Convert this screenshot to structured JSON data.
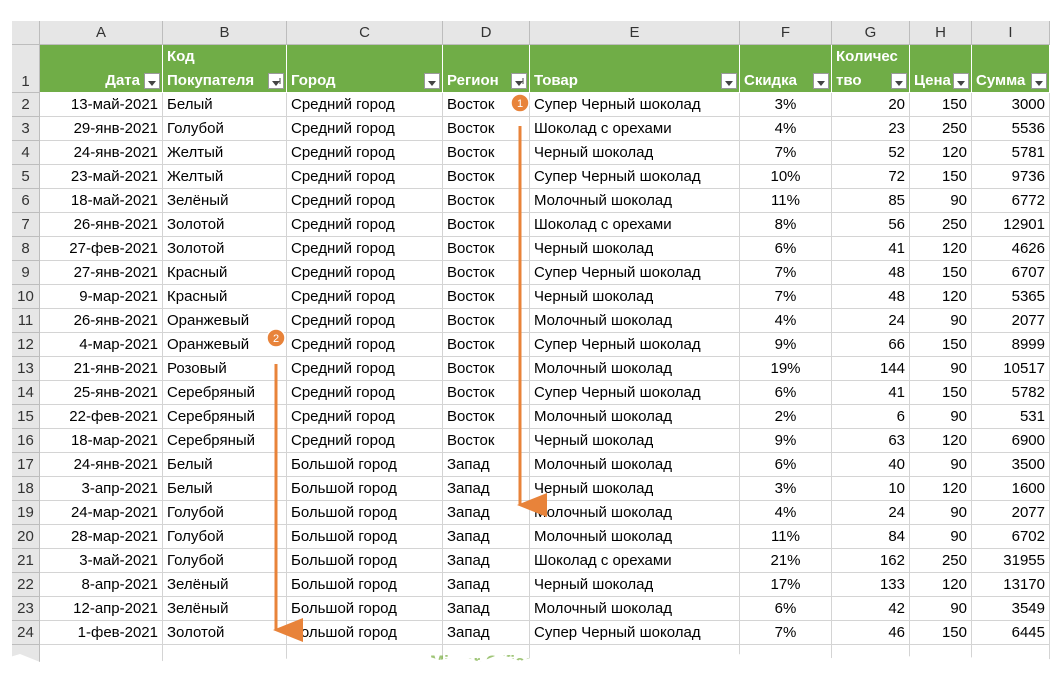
{
  "columns": [
    "A",
    "B",
    "C",
    "D",
    "E",
    "F",
    "G",
    "H",
    "I"
  ],
  "header": [
    [
      "Дата"
    ],
    [
      "Код",
      "Покупателя"
    ],
    [
      "Город"
    ],
    [
      "Регион"
    ],
    [
      "Товар"
    ],
    [
      "Скидка"
    ],
    [
      "Количес",
      "тво"
    ],
    [
      "Цена"
    ],
    [
      "Сумма"
    ]
  ],
  "row_numbers": [
    "1",
    "2",
    "3",
    "4",
    "5",
    "6",
    "7",
    "8",
    "9",
    "10",
    "11",
    "12",
    "13",
    "14",
    "15",
    "16",
    "17",
    "18",
    "19",
    "20",
    "21",
    "22",
    "23",
    "24"
  ],
  "rows": [
    [
      "13-май-2021",
      "Белый",
      "Средний город",
      "Восток",
      "Супер Черный шоколад",
      "3%",
      "20",
      "150",
      "3000"
    ],
    [
      "29-янв-2021",
      "Голубой",
      "Средний город",
      "Восток",
      "Шоколад с орехами",
      "4%",
      "23",
      "250",
      "5536"
    ],
    [
      "24-янв-2021",
      "Желтый",
      "Средний город",
      "Восток",
      "Черный шоколад",
      "7%",
      "52",
      "120",
      "5781"
    ],
    [
      "23-май-2021",
      "Желтый",
      "Средний город",
      "Восток",
      "Супер Черный шоколад",
      "10%",
      "72",
      "150",
      "9736"
    ],
    [
      "18-май-2021",
      "Зелёный",
      "Средний город",
      "Восток",
      "Молочный шоколад",
      "11%",
      "85",
      "90",
      "6772"
    ],
    [
      "26-янв-2021",
      "Золотой",
      "Средний город",
      "Восток",
      "Шоколад с орехами",
      "8%",
      "56",
      "250",
      "12901"
    ],
    [
      "27-фев-2021",
      "Золотой",
      "Средний город",
      "Восток",
      "Черный шоколад",
      "6%",
      "41",
      "120",
      "4626"
    ],
    [
      "27-янв-2021",
      "Красный",
      "Средний город",
      "Восток",
      "Супер Черный шоколад",
      "7%",
      "48",
      "150",
      "6707"
    ],
    [
      "9-мар-2021",
      "Красный",
      "Средний город",
      "Восток",
      "Черный шоколад",
      "7%",
      "48",
      "120",
      "5365"
    ],
    [
      "26-янв-2021",
      "Оранжевый",
      "Средний город",
      "Восток",
      "Молочный шоколад",
      "4%",
      "24",
      "90",
      "2077"
    ],
    [
      "4-мар-2021",
      "Оранжевый",
      "Средний город",
      "Восток",
      "Супер Черный шоколад",
      "9%",
      "66",
      "150",
      "8999"
    ],
    [
      "21-янв-2021",
      "Розовый",
      "Средний город",
      "Восток",
      "Молочный шоколад",
      "19%",
      "144",
      "90",
      "10517"
    ],
    [
      "25-янв-2021",
      "Серебряный",
      "Средний город",
      "Восток",
      "Супер Черный шоколад",
      "6%",
      "41",
      "150",
      "5782"
    ],
    [
      "22-фев-2021",
      "Серебряный",
      "Средний город",
      "Восток",
      "Молочный шоколад",
      "2%",
      "6",
      "90",
      "531"
    ],
    [
      "18-мар-2021",
      "Серебряный",
      "Средний город",
      "Восток",
      "Черный шоколад",
      "9%",
      "63",
      "120",
      "6900"
    ],
    [
      "24-янв-2021",
      "Белый",
      "Большой город",
      "Запад",
      "Молочный шоколад",
      "6%",
      "40",
      "90",
      "3500"
    ],
    [
      "3-апр-2021",
      "Белый",
      "Большой город",
      "Запад",
      "Черный шоколад",
      "3%",
      "10",
      "120",
      "1600"
    ],
    [
      "24-мар-2021",
      "Голубой",
      "Большой город",
      "Запад",
      "Молочный шоколад",
      "4%",
      "24",
      "90",
      "2077"
    ],
    [
      "28-мар-2021",
      "Голубой",
      "Большой город",
      "Запад",
      "Молочный шоколад",
      "11%",
      "84",
      "90",
      "6702"
    ],
    [
      "3-май-2021",
      "Голубой",
      "Большой город",
      "Запад",
      "Шоколад с орехами",
      "21%",
      "162",
      "250",
      "31955"
    ],
    [
      "8-апр-2021",
      "Зелёный",
      "Большой город",
      "Запад",
      "Черный шоколад",
      "17%",
      "133",
      "120",
      "13170"
    ],
    [
      "12-апр-2021",
      "Зелёный",
      "Большой город",
      "Запад",
      "Молочный шоколад",
      "6%",
      "42",
      "90",
      "3549"
    ],
    [
      "1-фев-2021",
      "Золотой",
      "Большой город",
      "Запад",
      "Супер Черный шоколад",
      "7%",
      "46",
      "150",
      "6445"
    ]
  ],
  "annotations": [
    "1",
    "2"
  ],
  "watermark": "Mister-Office"
}
